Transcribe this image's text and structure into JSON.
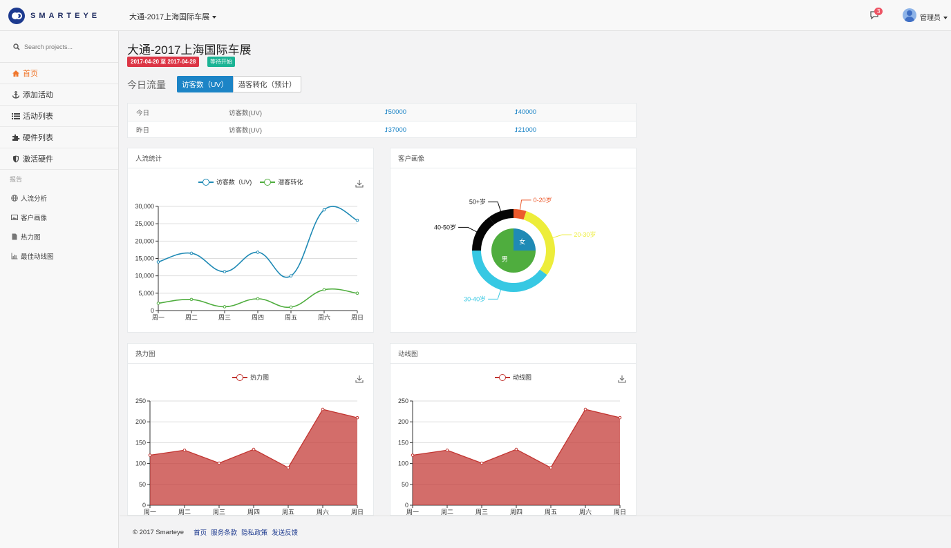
{
  "header": {
    "brand": "SMARTEYE",
    "event_selector": "大通-2017上海国际车展",
    "notification_count": "3",
    "user": "管理员"
  },
  "sidebar": {
    "search_placeholder": "Search projects...",
    "items": [
      {
        "label": "首页",
        "icon": "home-icon",
        "active": true
      },
      {
        "label": "添加活动",
        "icon": "anchor-icon"
      },
      {
        "label": "活动列表",
        "icon": "list-icon"
      },
      {
        "label": "硬件列表",
        "icon": "puzzle-icon"
      },
      {
        "label": "激活硬件",
        "icon": "shield-icon"
      }
    ],
    "section": "报告",
    "reports": [
      {
        "label": "人流分析",
        "icon": "globe-icon"
      },
      {
        "label": "客户画像",
        "icon": "image-icon"
      },
      {
        "label": "热力图",
        "icon": "file-icon"
      },
      {
        "label": "最佳动线图",
        "icon": "bar-chart-icon"
      }
    ]
  },
  "main": {
    "title": "大通-2017上海国际车展",
    "date_range": "2017-04-20 至 2017-04-28",
    "status": "等待开始",
    "section_title": "今日流量",
    "tabs": [
      "访客数（UV）",
      "潜客转化（预计）"
    ],
    "stats": [
      {
        "day": "今日",
        "metric": "访客数(UV)",
        "v1": "50000",
        "v2": "40000"
      },
      {
        "day": "昨日",
        "metric": "访客数(UV)",
        "v1": "37000",
        "v2": "21000"
      }
    ],
    "panels": {
      "traffic": "人流统计",
      "profile": "客户画像",
      "heatmap": "热力图",
      "route": "动线图"
    }
  },
  "chart_data": [
    {
      "type": "line",
      "title": "人流统计",
      "categories": [
        "周一",
        "周二",
        "周三",
        "周四",
        "周五",
        "周六",
        "周日"
      ],
      "series": [
        {
          "name": "访客数（UV)",
          "values": [
            14000,
            16500,
            11200,
            16800,
            10000,
            29000,
            26000
          ],
          "color": "#1f8ab5"
        },
        {
          "name": "潜客转化",
          "values": [
            2100,
            3200,
            1100,
            3400,
            1000,
            6000,
            5000
          ],
          "color": "#4fad3e"
        }
      ],
      "ylim": [
        0,
        30000
      ],
      "yticks": [
        "0",
        "5,000",
        "10,000",
        "15,000",
        "20,000",
        "25,000",
        "30,000"
      ],
      "grid": true,
      "legend": "top-center"
    },
    {
      "type": "pie",
      "title": "客户画像",
      "inner": [
        {
          "label": "女",
          "value": 25,
          "color": "#1f8ab5"
        },
        {
          "label": "男",
          "value": 75,
          "color": "#4fad3e"
        }
      ],
      "outer": [
        {
          "label": "0-20岁",
          "value": 5,
          "color": "#ec5a2c"
        },
        {
          "label": "20-30岁",
          "value": 30,
          "color": "#eded3a"
        },
        {
          "label": "30-40岁",
          "value": 40,
          "color": "#37c8e3"
        },
        {
          "label": "40-50岁",
          "value": 15,
          "color": "#050505"
        },
        {
          "label": "50+岁",
          "value": 10,
          "color": "#050505"
        }
      ]
    },
    {
      "type": "area",
      "title": "热力图",
      "categories": [
        "周一",
        "周二",
        "周三",
        "周四",
        "周五",
        "周六",
        "周日"
      ],
      "series": [
        {
          "name": "热力图",
          "values": [
            120,
            132,
            101,
            134,
            90,
            230,
            210
          ],
          "color": "#c23531"
        }
      ],
      "ylim": [
        0,
        250
      ],
      "yticks": [
        "0",
        "50",
        "100",
        "150",
        "200",
        "250"
      ],
      "legend": "top-center"
    },
    {
      "type": "area",
      "title": "动线图",
      "categories": [
        "周一",
        "周二",
        "周三",
        "周四",
        "周五",
        "周六",
        "周日"
      ],
      "series": [
        {
          "name": "动线图",
          "values": [
            120,
            132,
            101,
            134,
            90,
            230,
            210
          ],
          "color": "#c23531"
        }
      ],
      "ylim": [
        0,
        250
      ],
      "yticks": [
        "0",
        "50",
        "100",
        "150",
        "200",
        "250"
      ],
      "legend": "top-center"
    }
  ],
  "footer": {
    "copyright": "© 2017 Smarteye",
    "links": [
      "首页",
      "服务条款",
      "隐私政策",
      "发送反馈"
    ]
  }
}
